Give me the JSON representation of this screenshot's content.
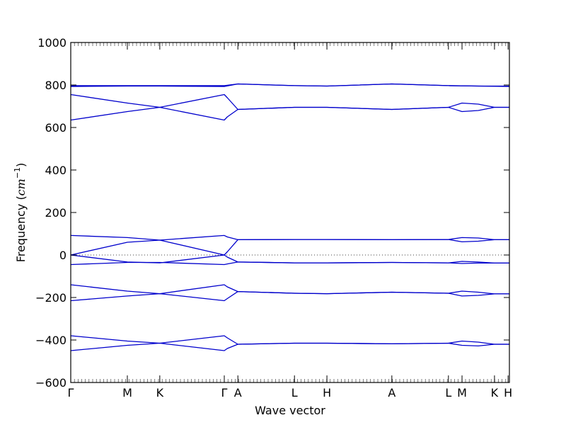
{
  "chart_data": {
    "type": "line",
    "title": "",
    "xlabel": "Wave vector",
    "ylabel_main": "Frequency (",
    "ylabel_unit": "cm",
    "ylabel_exp": "−1",
    "ylabel_close": ")",
    "ylim": [
      -600,
      1000
    ],
    "yticks": [
      1000,
      800,
      600,
      400,
      200,
      0,
      -200,
      -400,
      -600
    ],
    "ytick_labels": [
      "1000",
      "800",
      "600",
      "400",
      "200",
      "0",
      "−200",
      "−400",
      "−600"
    ],
    "x_range": [
      0,
      1
    ],
    "points": [
      {
        "label": "Γ",
        "x": 0.0
      },
      {
        "label": "M",
        "x": 0.129
      },
      {
        "label": "K",
        "x": 0.203
      },
      {
        "label": "Γ",
        "x": 0.35
      },
      {
        "label": "A",
        "x": 0.381
      },
      {
        "label": "L",
        "x": 0.51
      },
      {
        "label": "H",
        "x": 0.584
      },
      {
        "label": "A",
        "x": 0.732
      },
      {
        "label": "L",
        "x": 0.861
      },
      {
        "label": "M",
        "x": 0.892
      },
      {
        "label": "K",
        "x": 0.966
      },
      {
        "label": "H",
        "x": 0.997
      }
    ],
    "zero_line": {
      "y": 0,
      "style": "dotted"
    },
    "line_color": "#0000cc",
    "series": [
      {
        "x": [
          0,
          0.129,
          0.203,
          0.35,
          0.357,
          0.381,
          0.51,
          0.584,
          0.732,
          0.861,
          0.892,
          0.929,
          0.966,
          1.0
        ],
        "y": [
          -450,
          -425,
          -415,
          -450,
          -440,
          -420,
          -415,
          -415,
          -418,
          -415,
          -425,
          -428,
          -420,
          -420
        ]
      },
      {
        "x": [
          0,
          0.129,
          0.203,
          0.35,
          0.357,
          0.381,
          0.51,
          0.584,
          0.732,
          0.861,
          0.892,
          0.929,
          0.966,
          1.0
        ],
        "y": [
          -380,
          -405,
          -415,
          -380,
          -390,
          -420,
          -415,
          -415,
          -418,
          -415,
          -405,
          -410,
          -420,
          -420
        ]
      },
      {
        "x": [
          0,
          0.129,
          0.203,
          0.35,
          0.357,
          0.381,
          0.51,
          0.584,
          0.732,
          0.861,
          0.892,
          0.929,
          0.966,
          1.0
        ],
        "y": [
          -215,
          -193,
          -182,
          -215,
          -205,
          -172,
          -180,
          -182,
          -175,
          -180,
          -193,
          -190,
          -183,
          -183
        ]
      },
      {
        "x": [
          0,
          0.129,
          0.203,
          0.35,
          0.357,
          0.381,
          0.51,
          0.584,
          0.732,
          0.861,
          0.892,
          0.929,
          0.966,
          1.0
        ],
        "y": [
          -140,
          -170,
          -182,
          -140,
          -150,
          -172,
          -180,
          -182,
          -175,
          -180,
          -170,
          -175,
          -183,
          -183
        ]
      },
      {
        "x": [
          0,
          0.129,
          0.203,
          0.35,
          0.357,
          0.381,
          0.51,
          0.584,
          0.732,
          0.861,
          0.892,
          0.929,
          0.966,
          1.0
        ],
        "y": [
          -45,
          -35,
          -35,
          -45,
          -42,
          -33,
          -37,
          -37,
          -35,
          -37,
          -40,
          -38,
          -38,
          -38
        ]
      },
      {
        "x": [
          0,
          0.129,
          0.203,
          0.35,
          0.357,
          0.381,
          0.51,
          0.584,
          0.732,
          0.861,
          0.892,
          0.929,
          0.966,
          1.0
        ],
        "y": [
          0,
          -33,
          -37,
          0,
          -10,
          -33,
          -37,
          -37,
          -35,
          -37,
          -30,
          -33,
          -38,
          -38
        ]
      },
      {
        "x": [
          0,
          0.129,
          0.203,
          0.35,
          0.357,
          0.381,
          0.51,
          0.584,
          0.732,
          0.861,
          0.892,
          0.929,
          0.966,
          1.0
        ],
        "y": [
          0,
          60,
          70,
          0,
          15,
          72,
          73,
          73,
          72,
          73,
          62,
          65,
          72,
          72
        ]
      },
      {
        "x": [
          0,
          0.129,
          0.203,
          0.35,
          0.357,
          0.381,
          0.51,
          0.584,
          0.732,
          0.861,
          0.892,
          0.929,
          0.966,
          1.0
        ],
        "y": [
          92,
          82,
          70,
          92,
          85,
          72,
          73,
          73,
          72,
          73,
          82,
          80,
          72,
          72
        ]
      },
      {
        "x": [
          0,
          0.129,
          0.203,
          0.35,
          0.357,
          0.381,
          0.51,
          0.584,
          0.732,
          0.861,
          0.892,
          0.929,
          0.966,
          1.0
        ],
        "y": [
          635,
          675,
          695,
          635,
          650,
          685,
          695,
          695,
          685,
          695,
          675,
          680,
          695,
          695
        ]
      },
      {
        "x": [
          0,
          0.129,
          0.203,
          0.35,
          0.357,
          0.381,
          0.51,
          0.584,
          0.732,
          0.861,
          0.892,
          0.929,
          0.966,
          1.0
        ],
        "y": [
          755,
          715,
          695,
          755,
          740,
          685,
          695,
          695,
          685,
          695,
          715,
          710,
          695,
          695
        ]
      },
      {
        "x": [
          0,
          0.129,
          0.203,
          0.35,
          0.381,
          0.51,
          0.584,
          0.732,
          0.861,
          0.929,
          1.0
        ],
        "y": [
          793,
          795,
          795,
          793,
          805,
          797,
          795,
          805,
          797,
          795,
          793
        ]
      },
      {
        "x": [
          0,
          0.129,
          0.203,
          0.35,
          0.381,
          0.51,
          0.584,
          0.732,
          0.861,
          0.929,
          1.0
        ],
        "y": [
          797,
          797,
          797,
          797,
          805,
          797,
          795,
          805,
          797,
          795,
          795
        ]
      }
    ]
  }
}
